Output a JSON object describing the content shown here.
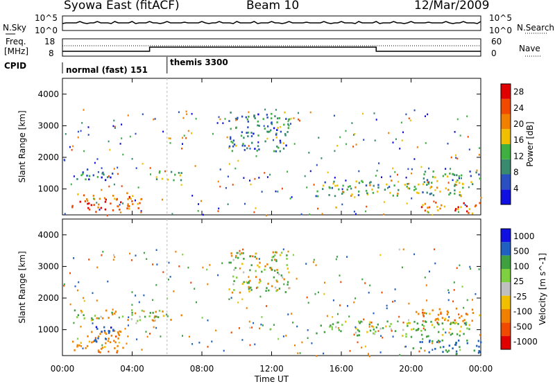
{
  "header": {
    "title": "Syowa East (fitACF)",
    "beam": "Beam 10",
    "date": "12/Mar/2009"
  },
  "sidebar": {
    "nsky": "N.Sky",
    "nsearch": "N.Search",
    "freq": "Freq.",
    "freq_unit": "[MHz]",
    "nave": "Nave",
    "cpid": "CPID"
  },
  "top_strip": {
    "left_ticks": [
      "10^5",
      "10^0"
    ],
    "right_ticks": [
      "10^5",
      "10^0"
    ]
  },
  "freq_strip": {
    "left_ticks": [
      "18",
      "8"
    ],
    "right_ticks": [
      "60",
      "0"
    ]
  },
  "cpid_labels": {
    "first": "normal (fast) 151",
    "second": "themis 3300"
  },
  "colors": {
    "power_scale": [
      "#1010e0",
      "#2a4fc0",
      "#3a8a70",
      "#3fb040",
      "#f0c000",
      "#f08000",
      "#f04a00",
      "#e00000"
    ],
    "velocity_scale": [
      "#1010e0",
      "#2060c0",
      "#3fa040",
      "#7ed040",
      "#c0c0c0",
      "#f0c000",
      "#f08000",
      "#f04a00",
      "#e00000"
    ]
  },
  "chart_data": [
    {
      "type": "heatmap",
      "title": "Power [dB]",
      "xlabel": "Time UT",
      "ylabel": "Slant Range [km]",
      "xlim": [
        "00:00",
        "24:00"
      ],
      "ylim": [
        180,
        4500
      ],
      "x_ticks": [
        "00:00",
        "04:00",
        "08:00",
        "12:00",
        "16:00",
        "20:00",
        "00:00"
      ],
      "y_ticks": [
        1000,
        2000,
        3000,
        4000
      ],
      "colorbar": {
        "label": "Power [dB]",
        "ticks": [
          4,
          8,
          12,
          16,
          20,
          24,
          28
        ],
        "range": [
          0,
          30
        ]
      },
      "regions": [
        {
          "time_hr": [
            0.5,
            4.5
          ],
          "range_km": [
            300,
            900
          ],
          "value_db": 24
        },
        {
          "time_hr": [
            0.5,
            3.0
          ],
          "range_km": [
            1300,
            1650
          ],
          "value_db": 8
        },
        {
          "time_hr": [
            5.0,
            6.8
          ],
          "range_km": [
            1300,
            1600
          ],
          "value_db": 12
        },
        {
          "time_hr": [
            9.5,
            13.0
          ],
          "range_km": [
            2200,
            3500
          ],
          "value_db": 10
        },
        {
          "time_hr": [
            14.5,
            23.5
          ],
          "range_km": [
            800,
            1300
          ],
          "value_db": 14
        },
        {
          "time_hr": [
            20.5,
            24.0
          ],
          "range_km": [
            250,
            600
          ],
          "value_db": 24
        },
        {
          "time_hr": [
            20.5,
            24.0
          ],
          "range_km": [
            1300,
            1600
          ],
          "value_db": 12
        }
      ]
    },
    {
      "type": "heatmap",
      "title": "Velocity [m s^-1]",
      "xlabel": "Time UT",
      "ylabel": "Slant Range [km]",
      "xlim": [
        "00:00",
        "24:00"
      ],
      "ylim": [
        180,
        4500
      ],
      "x_ticks": [
        "00:00",
        "04:00",
        "08:00",
        "12:00",
        "16:00",
        "20:00",
        "00:00"
      ],
      "y_ticks": [
        1000,
        2000,
        3000,
        4000
      ],
      "colorbar": {
        "label": "Velocity [m s^-1]",
        "ticks": [
          1000,
          500,
          100,
          25,
          -25,
          -100,
          -500,
          -1000
        ]
      },
      "regions": [
        {
          "time_hr": [
            0.5,
            3.5
          ],
          "range_km": [
            300,
            1000
          ],
          "value_ms": -300
        },
        {
          "time_hr": [
            1.8,
            3.0
          ],
          "range_km": [
            600,
            1200
          ],
          "value_ms": 800
        },
        {
          "time_hr": [
            0.5,
            6.8
          ],
          "range_km": [
            1300,
            1650
          ],
          "value_ms": 0
        },
        {
          "time_hr": [
            9.5,
            13.0
          ],
          "range_km": [
            2200,
            3500
          ],
          "value_ms": 20
        },
        {
          "time_hr": [
            14.5,
            23.5
          ],
          "range_km": [
            800,
            1300
          ],
          "value_ms": 150
        },
        {
          "time_hr": [
            20.0,
            24.0
          ],
          "range_km": [
            250,
            700
          ],
          "value_ms": 600
        },
        {
          "time_hr": [
            20.0,
            24.0
          ],
          "range_km": [
            1300,
            1700
          ],
          "value_ms": -300
        }
      ]
    }
  ]
}
